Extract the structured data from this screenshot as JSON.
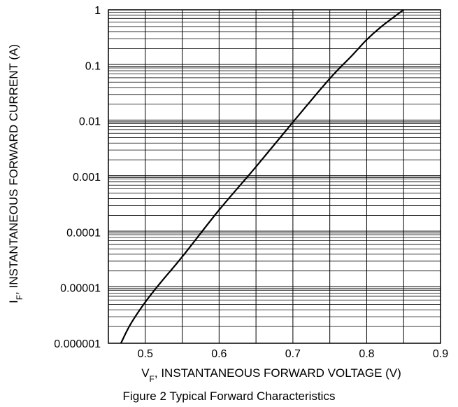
{
  "chart_data": {
    "type": "line",
    "ylog": true,
    "grid": true,
    "xlim": [
      0.45,
      0.9
    ],
    "ylim": [
      1e-06,
      1
    ],
    "x_ticks": [
      0.5,
      0.6,
      0.7,
      0.8,
      0.9
    ],
    "x_tick_labels": [
      "0.5",
      "0.6",
      "0.7",
      "0.8",
      "0.9"
    ],
    "y_ticks": [
      1e-06,
      1e-05,
      0.0001,
      0.001,
      0.01,
      0.1,
      1
    ],
    "y_tick_labels": [
      "0.000001",
      "0.00001",
      "0.0001",
      "0.001",
      "0.01",
      "0.1",
      "1"
    ],
    "xlabel": {
      "symbol": "V",
      "subscript": "F",
      "text": ", INSTANTANEOUS FORWARD VOLTAGE (V)"
    },
    "ylabel": {
      "symbol": "I",
      "subscript": "F",
      "text": ", INSTANTANEOUS FORWARD CURRENT (A)"
    },
    "caption": "Figure 2  Typical Forward Characteristics",
    "line_color": "#000000",
    "series": [
      {
        "x": [
          0.467,
          0.48,
          0.5,
          0.52,
          0.55,
          0.6,
          0.65,
          0.7,
          0.75,
          0.78,
          0.8,
          0.82,
          0.85
        ],
        "y": [
          1e-06,
          2.2e-06,
          5.5e-06,
          1.2e-05,
          3.6e-05,
          0.00025,
          0.0015,
          0.0095,
          0.058,
          0.15,
          0.29,
          0.5,
          1.0
        ]
      }
    ]
  }
}
